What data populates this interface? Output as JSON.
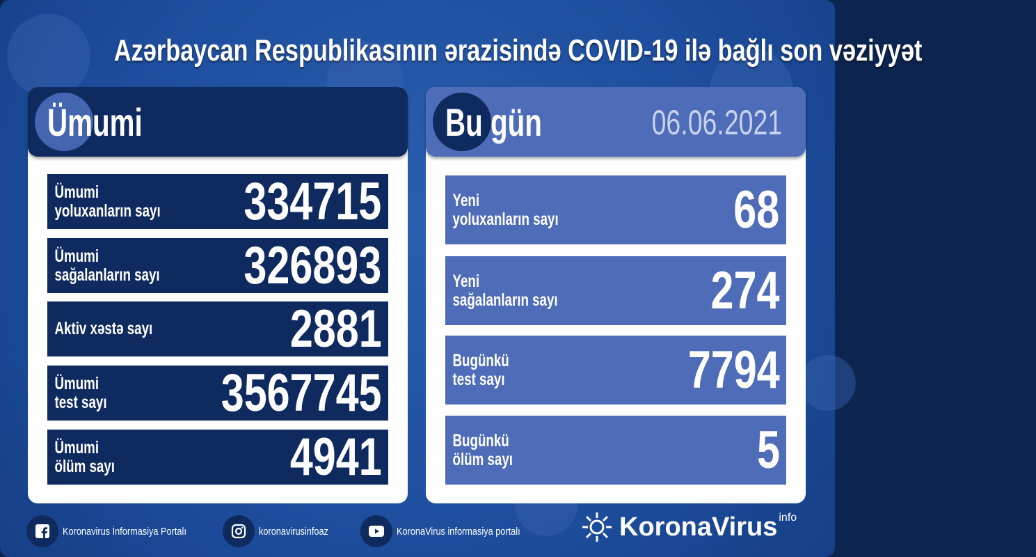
{
  "title": "Azərbaycan Respublikasının ərazisində COVID-19 ilə bağlı son vəziyyət",
  "colors": {
    "background": "#1f4f9e",
    "dark_navy": "#0e2a5f",
    "light_blue": "#4e6cb8",
    "date_text": "#c8d2ee"
  },
  "total": {
    "heading": "Ümumi",
    "rows": [
      {
        "label1": "Ümumi",
        "label2": "yoluxanların sayı",
        "value": "334715"
      },
      {
        "label1": "Ümumi",
        "label2": "sağalanların sayı",
        "value": "326893"
      },
      {
        "label1": "Aktiv xəstə sayı",
        "label2": "",
        "value": "2881"
      },
      {
        "label1": "Ümumi",
        "label2": "test sayı",
        "value": "3567745"
      },
      {
        "label1": "Ümumi",
        "label2": "ölüm sayı",
        "value": "4941"
      }
    ]
  },
  "today": {
    "heading": "Bu gün",
    "date": "06.06.2021",
    "rows": [
      {
        "label1": "Yeni",
        "label2": "yoluxanların sayı",
        "value": "68"
      },
      {
        "label1": "Yeni",
        "label2": "sağalanların sayı",
        "value": "274"
      },
      {
        "label1": "Bugünkü",
        "label2": "test sayı",
        "value": "7794"
      },
      {
        "label1": "Bugünkü",
        "label2": "ölüm sayı",
        "value": "5"
      }
    ]
  },
  "footer": {
    "facebook": {
      "icon": "facebook-icon",
      "text": "Koronavirus İnformasiya Portalı"
    },
    "instagram": {
      "icon": "instagram-icon",
      "text": "koronavirusinfoaz"
    },
    "youtube": {
      "icon": "youtube-icon",
      "text": "KoronaVirus informasiya portalı"
    },
    "brand": {
      "name": "KoronaVirus",
      "sup": "info"
    }
  }
}
